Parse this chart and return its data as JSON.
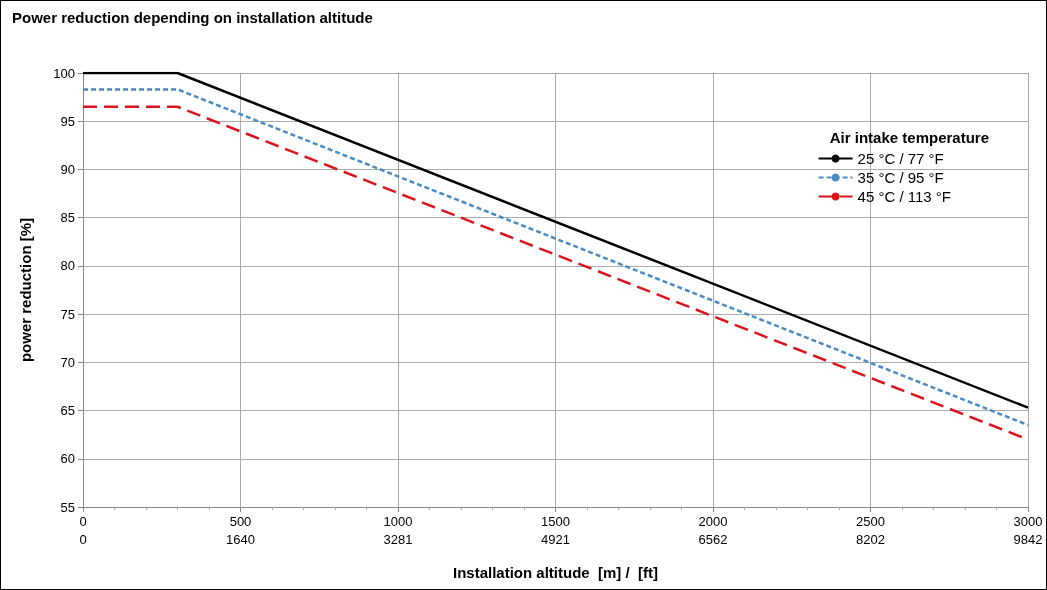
{
  "chart_data": {
    "type": "line",
    "title": "Power reduction depending on installation altitude",
    "xlabel": "Installation altitude  [m] /  [ft]",
    "ylabel": "power reduction [%]",
    "legend_title": "Air intake temperature",
    "x": [
      0,
      300,
      3000
    ],
    "series": [
      {
        "name": "25 °C / 77 °F",
        "color": "#000000",
        "line_style": "solid",
        "values": [
          100,
          100,
          65.3
        ]
      },
      {
        "name": "35 °C / 95 °F",
        "color": "#4a8bc4",
        "line_style": "dotted",
        "values": [
          98.3,
          98.3,
          63.5
        ]
      },
      {
        "name": "45 °C / 113 °F",
        "color": "#d9141c",
        "line_style": "dashed",
        "values": [
          96.5,
          96.5,
          62
        ]
      }
    ],
    "xlim": [
      0,
      3000
    ],
    "xticks": [
      0,
      500,
      1000,
      1500,
      2000,
      2500,
      3000
    ],
    "x2lim": [
      0,
      9842.5
    ],
    "x2ticks": [
      0,
      1640,
      3281,
      4921,
      6562,
      8202,
      9842
    ],
    "ylim": [
      55,
      100
    ],
    "yticks": [
      55,
      60,
      65,
      70,
      75,
      80,
      85,
      90,
      95,
      100
    ],
    "grid": true,
    "legend": "top right",
    "marker": "none"
  }
}
